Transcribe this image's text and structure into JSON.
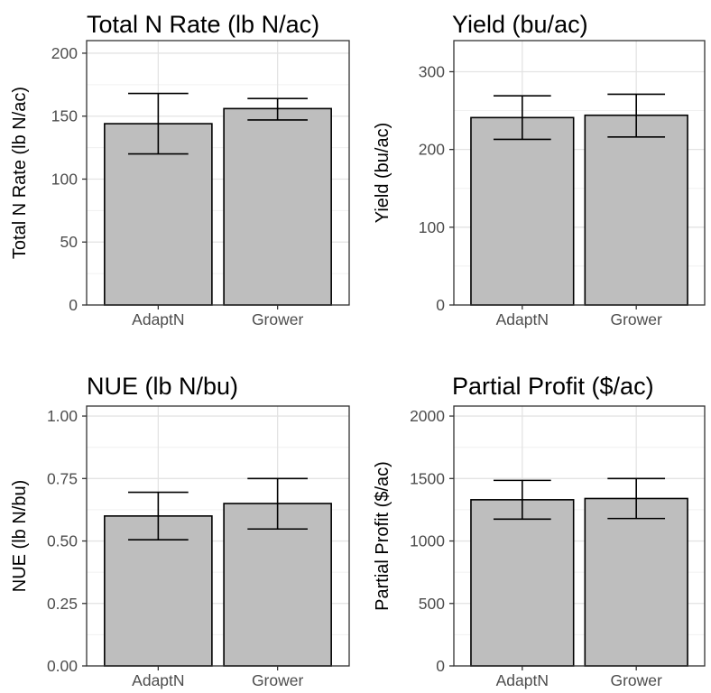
{
  "chart_data": [
    {
      "type": "bar",
      "title": "Total N Rate (lb N/ac)",
      "ylabel": "Total N Rate (lb N/ac)",
      "xlabel": "",
      "categories": [
        "AdaptN",
        "Grower"
      ],
      "values": [
        144,
        156
      ],
      "error_low": [
        120,
        147
      ],
      "error_high": [
        168,
        164
      ],
      "ylim": [
        0,
        210
      ],
      "yticks": [
        0,
        50,
        100,
        150,
        200
      ],
      "ytick_labels": [
        "0",
        "50",
        "100",
        "150",
        "200"
      ],
      "bar_color": "#bebebe",
      "grid": true
    },
    {
      "type": "bar",
      "title": "Yield (bu/ac)",
      "ylabel": "Yield (bu/ac)",
      "xlabel": "",
      "categories": [
        "AdaptN",
        "Grower"
      ],
      "values": [
        241,
        244
      ],
      "error_low": [
        213,
        216
      ],
      "error_high": [
        269,
        271
      ],
      "ylim": [
        0,
        340
      ],
      "yticks": [
        0,
        100,
        200,
        300
      ],
      "ytick_labels": [
        "0",
        "100",
        "200",
        "300"
      ],
      "bar_color": "#bebebe",
      "grid": true
    },
    {
      "type": "bar",
      "title": "NUE (lb N/bu)",
      "ylabel": "NUE (lb N/bu)",
      "xlabel": "",
      "categories": [
        "AdaptN",
        "Grower"
      ],
      "values": [
        0.6,
        0.65
      ],
      "error_low": [
        0.505,
        0.548
      ],
      "error_high": [
        0.695,
        0.75
      ],
      "ylim": [
        0,
        1.04
      ],
      "yticks": [
        0,
        0.25,
        0.5,
        0.75,
        1.0
      ],
      "ytick_labels": [
        "0.00",
        "0.25",
        "0.50",
        "0.75",
        "1.00"
      ],
      "bar_color": "#bebebe",
      "grid": true
    },
    {
      "type": "bar",
      "title": "Partial Profit ($/ac)",
      "ylabel": "Partial Profit ($/ac)",
      "xlabel": "",
      "categories": [
        "AdaptN",
        "Grower"
      ],
      "values": [
        1330,
        1340
      ],
      "error_low": [
        1175,
        1180
      ],
      "error_high": [
        1485,
        1500
      ],
      "ylim": [
        0,
        2080
      ],
      "yticks": [
        0,
        500,
        1000,
        1500,
        2000
      ],
      "ytick_labels": [
        "0",
        "500",
        "1000",
        "1500",
        "2000"
      ],
      "bar_color": "#bebebe",
      "grid": true
    }
  ]
}
